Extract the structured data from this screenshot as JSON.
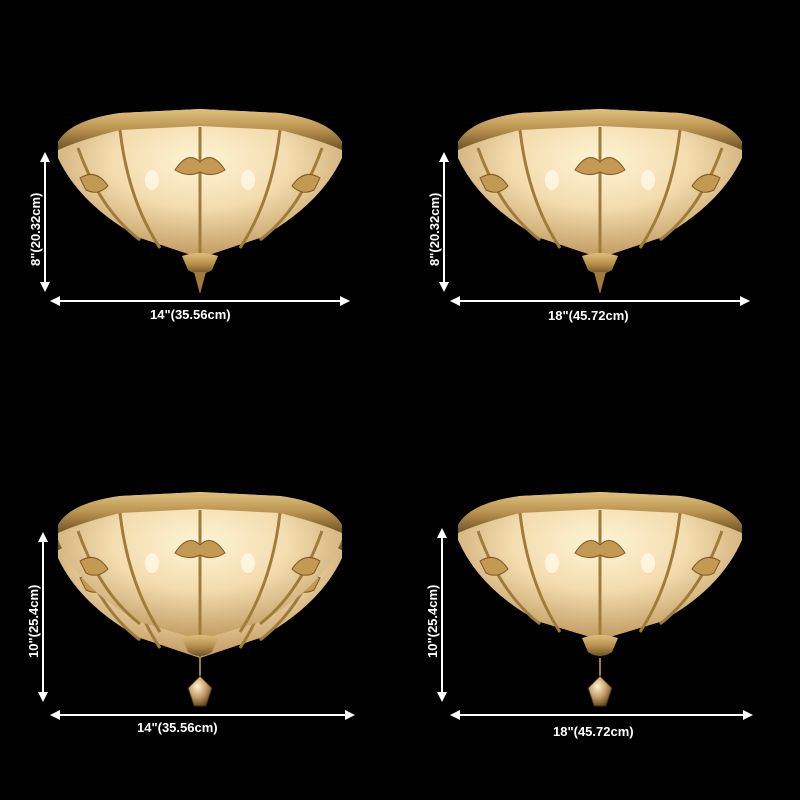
{
  "colors": {
    "background": "#000000",
    "brass": "#b8924e",
    "brass_dark": "#6e5226",
    "glass": "#f3dcae",
    "glass_glow": "#fff4d6",
    "dimension_line": "#ffffff"
  },
  "variants": [
    {
      "width_label": "14\"(35.56cm)",
      "height_label": "8\"(20.32cm)",
      "crystal_pendant": false
    },
    {
      "width_label": "18\"(45.72cm)",
      "height_label": "8\"(20.32cm)",
      "crystal_pendant": false
    },
    {
      "width_label": "14\"(35.56cm)",
      "height_label": "10\"(25.4cm)",
      "crystal_pendant": true
    },
    {
      "width_label": "18\"(45.72cm)",
      "height_label": "10\"(25.4cm)",
      "crystal_pendant": true
    }
  ]
}
